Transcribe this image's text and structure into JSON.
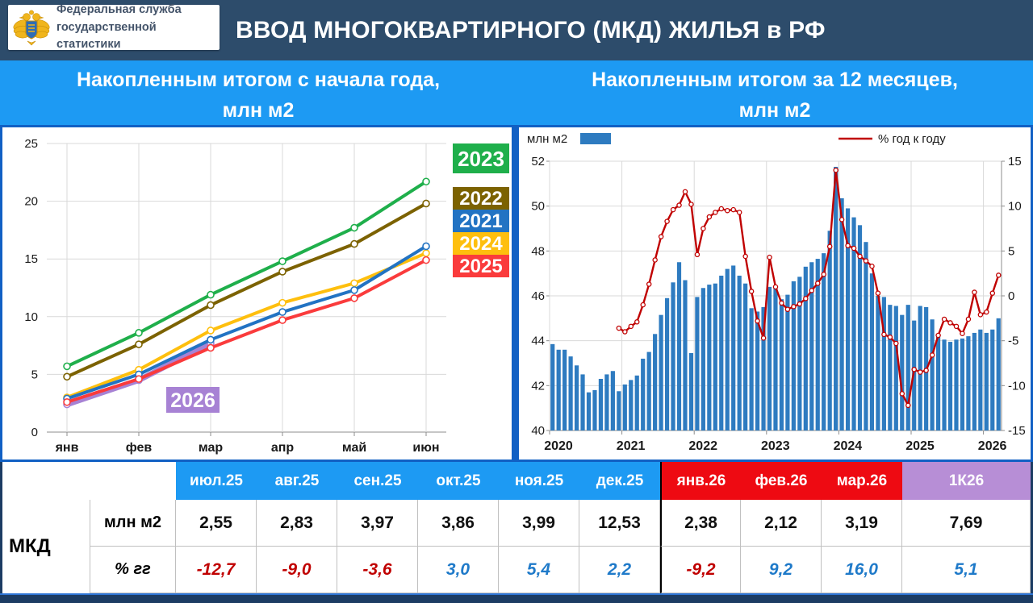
{
  "header": {
    "logo_line1": "Федеральная служба",
    "logo_line2": "государственной статистики",
    "title": "ВВОД МНОГОКВАРТИРНОГО (МКД) ЖИЛЬЯ в РФ"
  },
  "panels": {
    "left_title_1": "Накопленным итогом с начала года,",
    "left_title_2": "млн м2",
    "right_title_1": "Накопленным итогом за 12 месяцев,",
    "right_title_2": "млн м2"
  },
  "chart_data": [
    {
      "type": "line",
      "title": "Накопленным итогом с начала года, млн м2",
      "categories": [
        "янв",
        "фев",
        "мар",
        "апр",
        "май",
        "июн"
      ],
      "ylim": [
        0,
        25
      ],
      "yticks": [
        0,
        5,
        10,
        15,
        20,
        25
      ],
      "grid": true,
      "legend_position": "right",
      "series": [
        {
          "name": "2026",
          "color": "#a782d4",
          "values": [
            2.4,
            4.5,
            7.7
          ],
          "thick": true
        },
        {
          "name": "2024",
          "color": "#febf0e",
          "values": [
            3.0,
            5.4,
            8.8,
            11.2,
            12.9,
            15.5
          ]
        },
        {
          "name": "2021",
          "color": "#2273c3",
          "values": [
            2.9,
            5.0,
            8.0,
            10.4,
            12.3,
            16.1
          ]
        },
        {
          "name": "2025",
          "color": "#fa3b3c",
          "values": [
            2.6,
            4.6,
            7.3,
            9.7,
            11.6,
            14.9
          ]
        },
        {
          "name": "2022",
          "color": "#7c6200",
          "values": [
            4.8,
            7.6,
            11.0,
            13.9,
            16.3,
            19.8
          ]
        },
        {
          "name": "2023",
          "color": "#1faf4b",
          "values": [
            5.7,
            8.6,
            11.9,
            14.8,
            17.7,
            21.7
          ]
        }
      ],
      "legend": [
        {
          "name": "2023",
          "color": "#1faf4b"
        },
        {
          "name": "2022",
          "color": "#7c6200"
        },
        {
          "name": "2021",
          "color": "#2273c3"
        },
        {
          "name": "2024",
          "color": "#febf0e"
        },
        {
          "name": "2025",
          "color": "#fa3b3c"
        }
      ],
      "inline_badge": {
        "name": "2026",
        "color": "#a782d4"
      }
    },
    {
      "type": "bar+line",
      "title": "Накопленным итогом за 12 месяцев, млн м2",
      "x_year_labels": [
        "2020",
        "2021",
        "2022",
        "2023",
        "2024",
        "2025",
        "2026"
      ],
      "left_axis": {
        "label": "млн м2",
        "min": 40,
        "max": 52,
        "step": 2
      },
      "right_axis": {
        "label": "% год к году",
        "min": -15,
        "max": 15,
        "step": 5
      },
      "bar_color": "#2e7bc0",
      "line_color": "#c00000",
      "bars": {
        "name": "млн м2",
        "start_month": "2020-01",
        "values": [
          43.85,
          43.6,
          43.6,
          43.3,
          42.9,
          42.5,
          41.7,
          41.8,
          42.3,
          42.5,
          42.65,
          41.75,
          42.05,
          42.25,
          42.45,
          43.2,
          43.5,
          44.3,
          45.15,
          45.9,
          46.6,
          47.5,
          46.7,
          43.45,
          45.95,
          46.35,
          46.5,
          46.55,
          46.9,
          47.2,
          47.35,
          46.9,
          46.55,
          45.45,
          45.3,
          45.5,
          46.4,
          46.45,
          45.85,
          46.05,
          46.65,
          46.85,
          47.3,
          47.5,
          47.65,
          47.9,
          48.9,
          51.75,
          50.35,
          49.9,
          49.5,
          49.15,
          48.4,
          47.0,
          46.0,
          45.95,
          45.6,
          45.55,
          45.15,
          45.6,
          44.9,
          45.55,
          45.5,
          44.95,
          44.3,
          44.05,
          43.95,
          44.05,
          44.1,
          44.2,
          44.35,
          44.5,
          44.35,
          44.5,
          45.0
        ]
      },
      "line": {
        "name": "% год к году",
        "start_month": "2020-12",
        "values": [
          -3.6,
          -4.0,
          -3.4,
          -2.9,
          -1.0,
          1.3,
          4.0,
          6.6,
          8.3,
          9.6,
          10.1,
          11.6,
          10.2,
          4.6,
          7.5,
          8.8,
          9.3,
          9.7,
          9.5,
          9.6,
          9.3,
          4.4,
          0.5,
          -2.8,
          -4.7,
          4.3,
          1.0,
          -0.8,
          -1.5,
          -1.2,
          -0.9,
          -0.3,
          0.6,
          1.4,
          2.4,
          5.5,
          14.0,
          8.5,
          5.6,
          5.3,
          4.4,
          3.9,
          3.3,
          0.3,
          -4.3,
          -4.6,
          -5.3,
          -10.9,
          -12.2,
          -8.2,
          -8.5,
          -8.3,
          -6.6,
          -4.4,
          -2.6,
          -3.0,
          -3.4,
          -4.2,
          -2.6,
          0.4,
          -2.1,
          -1.8,
          0.3,
          2.3
        ]
      }
    }
  ],
  "table": {
    "row_group_label": "МКД",
    "row_labels": [
      "млн м2",
      "% гг"
    ],
    "col_headers": [
      {
        "label": "июл.25",
        "bg": "blue"
      },
      {
        "label": "авг.25",
        "bg": "blue"
      },
      {
        "label": "сен.25",
        "bg": "blue"
      },
      {
        "label": "окт.25",
        "bg": "blue"
      },
      {
        "label": "ноя.25",
        "bg": "blue"
      },
      {
        "label": "дек.25",
        "bg": "blue"
      },
      {
        "label": "янв.26",
        "bg": "red"
      },
      {
        "label": "фев.26",
        "bg": "red"
      },
      {
        "label": "мар.26",
        "bg": "red"
      },
      {
        "label": "1К26",
        "bg": "purple"
      }
    ],
    "rows": [
      [
        "2,55",
        "2,83",
        "3,97",
        "3,86",
        "3,99",
        "12,53",
        "2,38",
        "2,12",
        "3,19",
        "7,69"
      ],
      [
        "-12,7",
        "-9,0",
        "-3,6",
        "3,0",
        "5,4",
        "2,2",
        "-9,2",
        "9,2",
        "16,0",
        "5,1"
      ]
    ],
    "colors": {
      "negative": "#c00000",
      "positive": "#1f7ac9",
      "header_blue": "#1d9af3",
      "header_red": "#ee0a12",
      "header_purple": "#b78ed6"
    }
  }
}
